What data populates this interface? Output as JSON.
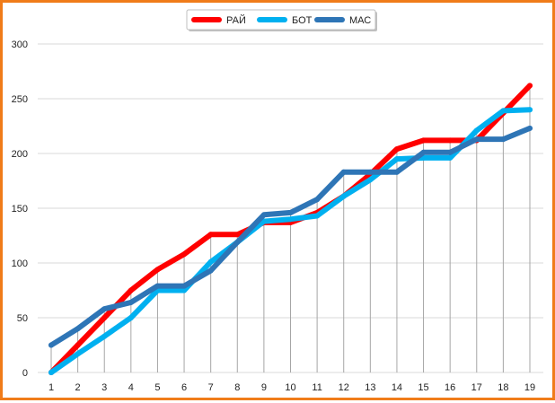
{
  "chart_data": {
    "type": "line",
    "title": "",
    "xlabel": "",
    "ylabel": "",
    "ylim": [
      0,
      300
    ],
    "y_ticks": [
      0,
      50,
      100,
      150,
      200,
      250,
      300
    ],
    "categories": [
      "1",
      "2",
      "3",
      "4",
      "5",
      "6",
      "7",
      "8",
      "9",
      "10",
      "11",
      "12",
      "13",
      "14",
      "15",
      "16",
      "17",
      "18",
      "19"
    ],
    "grid": "horizontal gridlines and vertical drop lines",
    "legend_position": "top-center",
    "series": [
      {
        "name": "РАЙ",
        "color": "#ff0000",
        "values": [
          0,
          25,
          50,
          75,
          94,
          108,
          126,
          126,
          137,
          137,
          146,
          161,
          181,
          204,
          212,
          212,
          212,
          237,
          262
        ]
      },
      {
        "name": "БОТ",
        "color": "#00b0f0",
        "values": [
          0,
          17,
          33,
          50,
          75,
          75,
          101,
          119,
          138,
          140,
          143,
          161,
          176,
          195,
          196,
          196,
          221,
          239,
          240
        ]
      },
      {
        "name": "МАС",
        "color": "#2e75b6",
        "values": [
          25,
          40,
          58,
          64,
          79,
          79,
          93,
          119,
          144,
          146,
          158,
          183,
          183,
          183,
          201,
          201,
          213,
          213,
          223
        ]
      }
    ]
  }
}
